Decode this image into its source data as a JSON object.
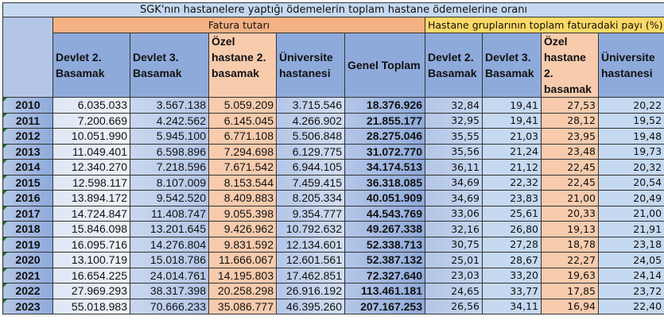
{
  "title": "SGK'nın hastanelere yaptığı ödemelerin toplam hastane ödemelerine oranı",
  "group_invoice": "Fatura tutarı",
  "group_share": "Hastane gruplarının toplam faturadaki payı (%)",
  "headers": {
    "invoice": [
      "Devlet 2. Basamak",
      "Devlet 3. Basamak",
      "Özel hastane 2. basamak",
      "Üniversite hastanesi",
      "Genel Toplam"
    ],
    "share": [
      "Devlet 2. Basamak",
      "Devlet 3. Basamak",
      "Özel hastane 2. basamak",
      "Üniversite hastanesi"
    ]
  },
  "rows": [
    [
      "2010",
      "6.035.033",
      "3.567.138",
      "5.059.209",
      "3.715.546",
      "18.376.926",
      "32,84",
      "19,41",
      "27,53",
      "20,22"
    ],
    [
      "2011",
      "7.200.669",
      "4.242.562",
      "6.145.045",
      "4.266.902",
      "21.855.177",
      "32,95",
      "19,41",
      "28,12",
      "19,52"
    ],
    [
      "2012",
      "10.051.990",
      "5.945.100",
      "6.771.108",
      "5.506.848",
      "28.275.046",
      "35,55",
      "21,03",
      "23,95",
      "19,48"
    ],
    [
      "2013",
      "11.049.401",
      "6.598.896",
      "7.294.698",
      "6.129.775",
      "31.072.770",
      "35,56",
      "21,24",
      "23,48",
      "19,73"
    ],
    [
      "2014",
      "12.340.270",
      "7.218.596",
      "7.671.542",
      "6.944.105",
      "34.174.513",
      "36,11",
      "21,12",
      "22,45",
      "20,32"
    ],
    [
      "2015",
      "12.598.117",
      "8.107.009",
      "8.153.544",
      "7.459.415",
      "36.318.085",
      "34,69",
      "22,32",
      "22,45",
      "20,54"
    ],
    [
      "2016",
      "13.894.172",
      "9.542.520",
      "8.409.883",
      "8.205.334",
      "40.051.909",
      "34,69",
      "23,83",
      "21,00",
      "20,49"
    ],
    [
      "2017",
      "14.724.847",
      "11.408.747",
      "9.055.398",
      "9.354.777",
      "44.543.769",
      "33,06",
      "25,61",
      "20,33",
      "21,00"
    ],
    [
      "2018",
      "15.846.098",
      "13.201.645",
      "9.426.962",
      "10.792.632",
      "49.267.338",
      "32,16",
      "26,80",
      "19,13",
      "21,91"
    ],
    [
      "2019",
      "16.095.716",
      "14.276.804",
      "9.831.592",
      "12.134.601",
      "52.338.713",
      "30,75",
      "27,28",
      "18,78",
      "23,18"
    ],
    [
      "2020",
      "13.100.719",
      "15.018.786",
      "11.666.067",
      "12.601.561",
      "52.387.132",
      "25,01",
      "28,67",
      "22,27",
      "24,05"
    ],
    [
      "2021",
      "16.654.225",
      "24.014.761",
      "14.195.803",
      "17.462.851",
      "72.327.640",
      "23,03",
      "33,20",
      "19,63",
      "24,14"
    ],
    [
      "2022",
      "27.969.293",
      "38.317.398",
      "20.258.298",
      "26.916.192",
      "113.461.181",
      "24,65",
      "33,77",
      "17,85",
      "23,72"
    ],
    [
      "2023",
      "55.018.983",
      "70.666.233",
      "35.086.777",
      "46.395.260",
      "207.167.253",
      "26,56",
      "34,11",
      "16,94",
      "22,40"
    ]
  ]
}
